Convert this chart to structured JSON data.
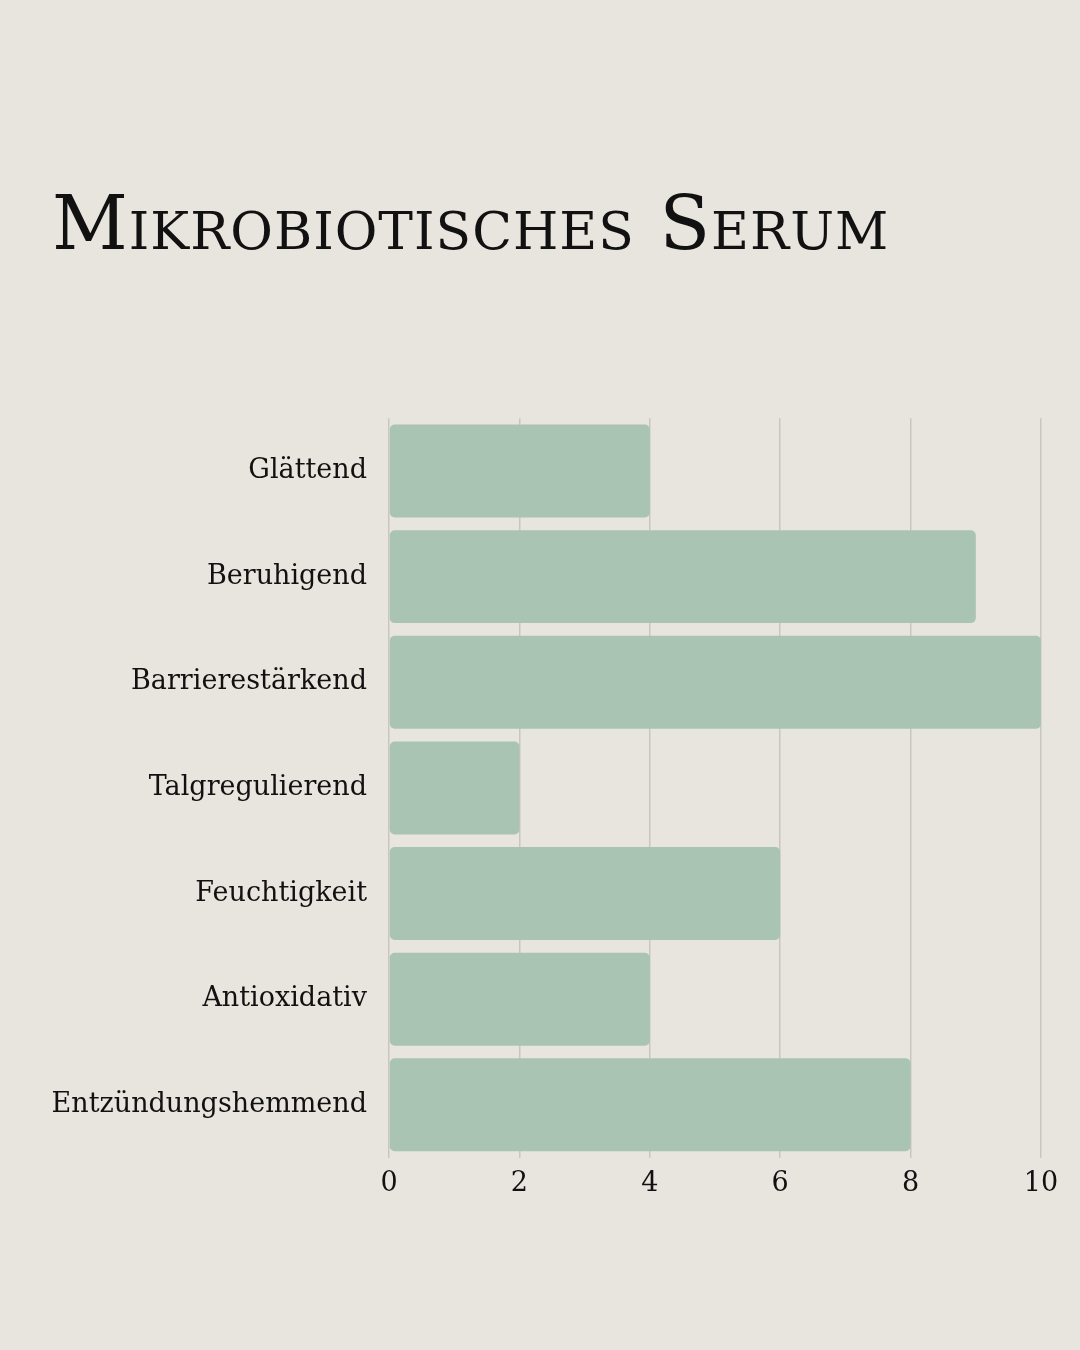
{
  "chart_data": {
    "type": "bar",
    "title": "Mikrobiotisches Serum",
    "orientation": "horizontal",
    "categories": [
      "Glättend",
      "Beruhigend",
      "Barrierestärkend",
      "Talgregulierend",
      "Feuchtigkeit",
      "Antioxidativ",
      "Entzündungshemmend"
    ],
    "values": [
      4,
      9,
      10,
      2,
      6,
      4,
      8
    ],
    "color": "#a9c4b3",
    "xlim": [
      0,
      10
    ],
    "xticks": [
      0,
      2,
      4,
      6,
      8,
      10
    ],
    "grid": "x"
  }
}
